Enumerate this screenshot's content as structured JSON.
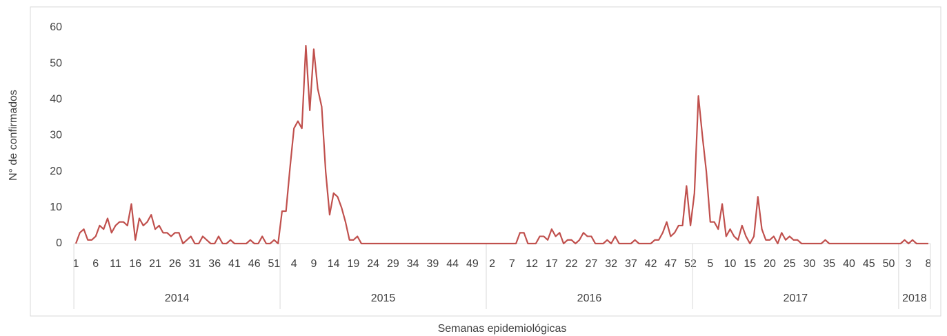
{
  "chart_data": {
    "type": "line",
    "y_label": "N° de confirmados",
    "x_label": "Semanas epidemiológicas",
    "categories": [
      "1",
      null,
      null,
      null,
      null,
      "6",
      null,
      null,
      null,
      null,
      "11",
      null,
      null,
      null,
      null,
      "16",
      null,
      null,
      null,
      null,
      "21",
      null,
      null,
      null,
      null,
      "26",
      null,
      null,
      null,
      null,
      "31",
      null,
      null,
      null,
      null,
      "36",
      null,
      null,
      null,
      null,
      "41",
      null,
      null,
      null,
      null,
      "46",
      null,
      null,
      null,
      null,
      "51",
      null,
      null,
      null,
      null,
      "4",
      null,
      null,
      null,
      null,
      "9",
      null,
      null,
      null,
      null,
      "14",
      null,
      null,
      null,
      null,
      "19",
      null,
      null,
      null,
      null,
      "24",
      null,
      null,
      null,
      null,
      "29",
      null,
      null,
      null,
      null,
      "34",
      null,
      null,
      null,
      null,
      "39",
      null,
      null,
      null,
      null,
      "44",
      null,
      null,
      null,
      null,
      "49",
      null,
      null,
      null,
      null,
      "2",
      null,
      null,
      null,
      null,
      "7",
      null,
      null,
      null,
      null,
      "12",
      null,
      null,
      null,
      null,
      "17",
      null,
      null,
      null,
      null,
      "22",
      null,
      null,
      null,
      null,
      "27",
      null,
      null,
      null,
      null,
      "32",
      null,
      null,
      null,
      null,
      "37",
      null,
      null,
      null,
      null,
      "42",
      null,
      null,
      null,
      null,
      "47",
      null,
      null,
      null,
      null,
      "52",
      null,
      null,
      null,
      null,
      "5",
      null,
      null,
      null,
      null,
      "10",
      null,
      null,
      null,
      null,
      "15",
      null,
      null,
      null,
      null,
      "20",
      null,
      null,
      null,
      null,
      "25",
      null,
      null,
      null,
      null,
      "30",
      null,
      null,
      null,
      null,
      "35",
      null,
      null,
      null,
      null,
      "40",
      null,
      null,
      null,
      null,
      "45",
      null,
      null,
      null,
      null,
      "50",
      null,
      null,
      null,
      null,
      "3",
      null,
      null,
      null,
      null,
      "8"
    ],
    "groups": [
      {
        "name": "2014",
        "weeks": 52
      },
      {
        "name": "2015",
        "weeks": 52
      },
      {
        "name": "2016",
        "weeks": 52
      },
      {
        "name": "2017",
        "weeks": 52
      },
      {
        "name": "2018",
        "weeks": 8
      }
    ],
    "series": [
      {
        "color": "#c0504d",
        "values": [
          0,
          3,
          4,
          1,
          1,
          2,
          5,
          4,
          7,
          3,
          5,
          6,
          6,
          5,
          11,
          1,
          7,
          5,
          6,
          8,
          4,
          5,
          3,
          3,
          2,
          3,
          3,
          0,
          1,
          2,
          0,
          0,
          2,
          1,
          0,
          0,
          2,
          0,
          0,
          1,
          0,
          0,
          0,
          0,
          1,
          0,
          0,
          2,
          0,
          0,
          1,
          0,
          9,
          9,
          21,
          32,
          34,
          32,
          55,
          37,
          54,
          43,
          38,
          20,
          8,
          14,
          13,
          10,
          6,
          1,
          1,
          2,
          0,
          0,
          0,
          0,
          0,
          0,
          0,
          0,
          0,
          0,
          0,
          0,
          0,
          0,
          0,
          0,
          0,
          0,
          0,
          0,
          0,
          0,
          0,
          0,
          0,
          0,
          0,
          0,
          0,
          0,
          0,
          0,
          0,
          0,
          0,
          0,
          0,
          0,
          0,
          0,
          3,
          3,
          0,
          0,
          0,
          2,
          2,
          1,
          4,
          2,
          3,
          0,
          1,
          1,
          0,
          1,
          3,
          2,
          2,
          0,
          0,
          0,
          1,
          0,
          2,
          0,
          0,
          0,
          0,
          1,
          0,
          0,
          0,
          0,
          1,
          1,
          3,
          6,
          2,
          3,
          5,
          5,
          16,
          5,
          14,
          41,
          30,
          20,
          6,
          6,
          4,
          11,
          2,
          4,
          2,
          1,
          5,
          2,
          0,
          2,
          13,
          4,
          1,
          1,
          2,
          0,
          3,
          1,
          2,
          1,
          1,
          0,
          0,
          0,
          0,
          0,
          0,
          1,
          0,
          0,
          0,
          0,
          0,
          0,
          0,
          0,
          0,
          0,
          0,
          0,
          0,
          0,
          0,
          0,
          0,
          0,
          0,
          1,
          0,
          1,
          0,
          0,
          0,
          0
        ]
      }
    ],
    "ylim": [
      0,
      60
    ],
    "yticks": [
      0,
      10,
      20,
      30,
      40,
      50,
      60
    ]
  }
}
